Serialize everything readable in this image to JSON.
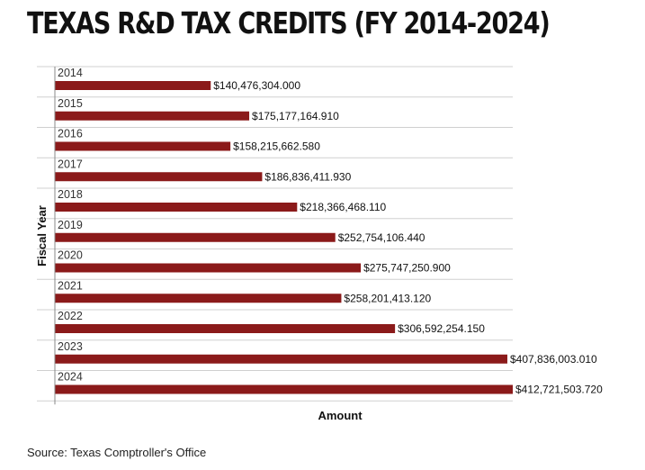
{
  "title": "TEXAS R&D TAX CREDITS (FY 2014-2024)",
  "source": "Source: Texas Comptroller's Office",
  "colors": {
    "bar": "#8B1A1A",
    "grid": "#D0D0D0",
    "axis": "#888888"
  },
  "chart_data": {
    "type": "bar",
    "orientation": "horizontal",
    "xlabel": "Amount",
    "ylabel": "Fiscal Year",
    "grid": true,
    "legend": "none",
    "xlim": [
      0,
      412721503.72
    ],
    "categories": [
      "2014",
      "2015",
      "2016",
      "2017",
      "2018",
      "2019",
      "2020",
      "2021",
      "2022",
      "2023",
      "2024"
    ],
    "values": [
      140476304.0,
      175177164.91,
      158215662.58,
      186836411.93,
      218366468.11,
      252754106.44,
      275747250.9,
      258201413.12,
      306592254.15,
      407836003.01,
      412721503.72
    ],
    "value_labels": [
      "$140,476,304.000",
      "$175,177,164.910",
      "$158,215,662.580",
      "$186,836,411.930",
      "$218,366,468.110",
      "$252,754,106.440",
      "$275,747,250.900",
      "$258,201,413.120",
      "$306,592,254.150",
      "$407,836,003.010",
      "$412,721,503.720"
    ]
  }
}
